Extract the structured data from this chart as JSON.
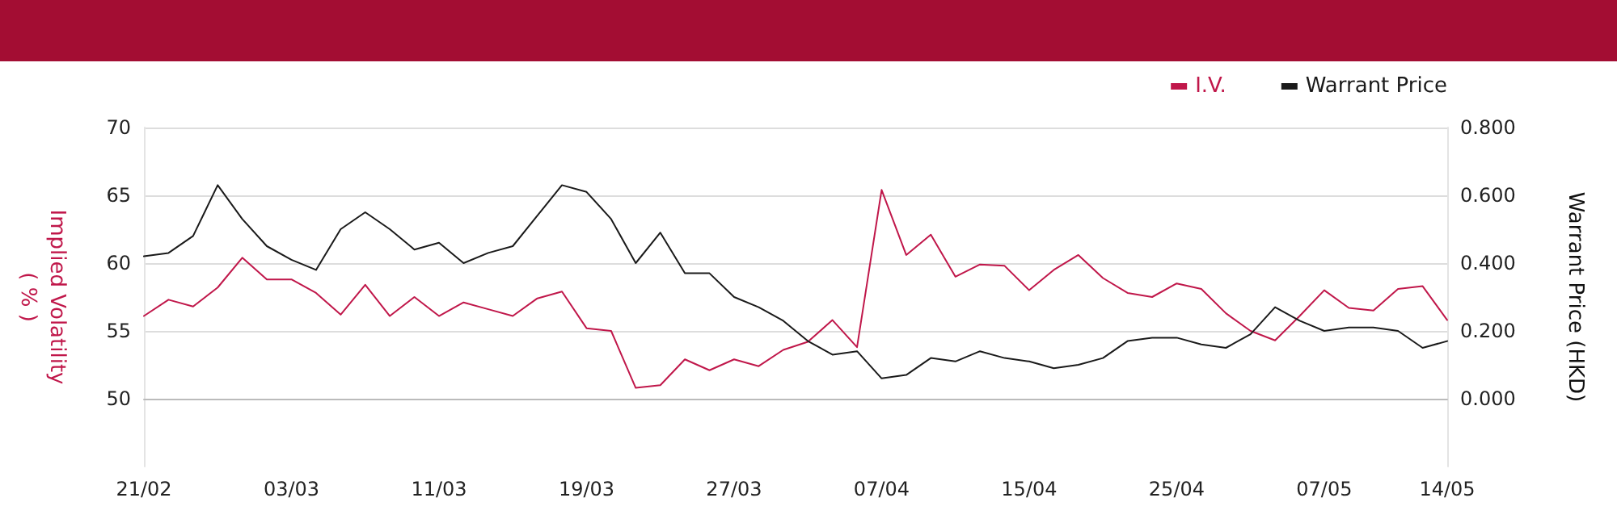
{
  "chart_data": {
    "type": "line",
    "categories": [
      "21/02",
      null,
      null,
      null,
      null,
      null,
      "03/03",
      null,
      null,
      null,
      null,
      null,
      "11/03",
      null,
      null,
      null,
      null,
      null,
      "19/03",
      null,
      null,
      null,
      null,
      null,
      "27/03",
      null,
      null,
      null,
      null,
      null,
      "07/04",
      null,
      null,
      null,
      null,
      null,
      "15/04",
      null,
      null,
      null,
      null,
      null,
      "25/04",
      null,
      null,
      null,
      null,
      null,
      "07/05",
      null,
      null,
      null,
      null,
      "14/05"
    ],
    "series": [
      {
        "name": "I.V.",
        "color": "#c0174a",
        "values": [
          56.1,
          57.3,
          56.8,
          58.2,
          60.4,
          58.8,
          58.8,
          57.8,
          56.2,
          58.4,
          56.1,
          57.5,
          56.1,
          57.1,
          56.6,
          56.1,
          57.4,
          57.9,
          55.2,
          55.0,
          50.8,
          51.0,
          52.9,
          52.1,
          52.9,
          52.4,
          53.6,
          54.2,
          55.8,
          53.8,
          65.4,
          60.6,
          62.1,
          59.0,
          59.9,
          59.8,
          58.0,
          59.5,
          60.6,
          58.9,
          57.8,
          57.5,
          58.5,
          58.1,
          56.3,
          55.0,
          54.3,
          56.1,
          58.0,
          56.7,
          56.5,
          58.1,
          58.3,
          55.8
        ]
      },
      {
        "name": "Warrant Price",
        "color": "#1a1a1a",
        "axis": "y2",
        "values": [
          0.42,
          0.43,
          0.48,
          0.63,
          0.53,
          0.45,
          0.41,
          0.38,
          0.5,
          0.55,
          0.5,
          0.44,
          0.46,
          0.4,
          0.43,
          0.45,
          0.54,
          0.63,
          0.61,
          0.53,
          0.4,
          0.49,
          0.37,
          0.37,
          0.3,
          0.27,
          0.23,
          0.17,
          0.13,
          0.14,
          0.06,
          0.07,
          0.12,
          0.11,
          0.14,
          0.12,
          0.11,
          0.09,
          0.1,
          0.12,
          0.17,
          0.18,
          0.18,
          0.16,
          0.15,
          0.19,
          0.27,
          0.23,
          0.2,
          0.21,
          0.21,
          0.2,
          0.15,
          0.17
        ]
      }
    ],
    "ylabel": "Implied Volatility\n( % )",
    "y2label": "Warrant Price (HKD)",
    "ylim": [
      45,
      70
    ],
    "yticks": [
      50,
      55,
      60,
      65,
      70
    ],
    "y2lim": [
      -0.2,
      0.8
    ],
    "y2ticks": [
      {
        "value": 0,
        "label": "0.000"
      },
      {
        "value": 0.2,
        "label": "0.200"
      },
      {
        "value": 0.4,
        "label": "0.400"
      },
      {
        "value": 0.6,
        "label": "0.600"
      },
      {
        "value": 0.8,
        "label": "0.800"
      }
    ],
    "grid": "y",
    "legend": "top right",
    "marker": "none",
    "line_style": "solid"
  }
}
